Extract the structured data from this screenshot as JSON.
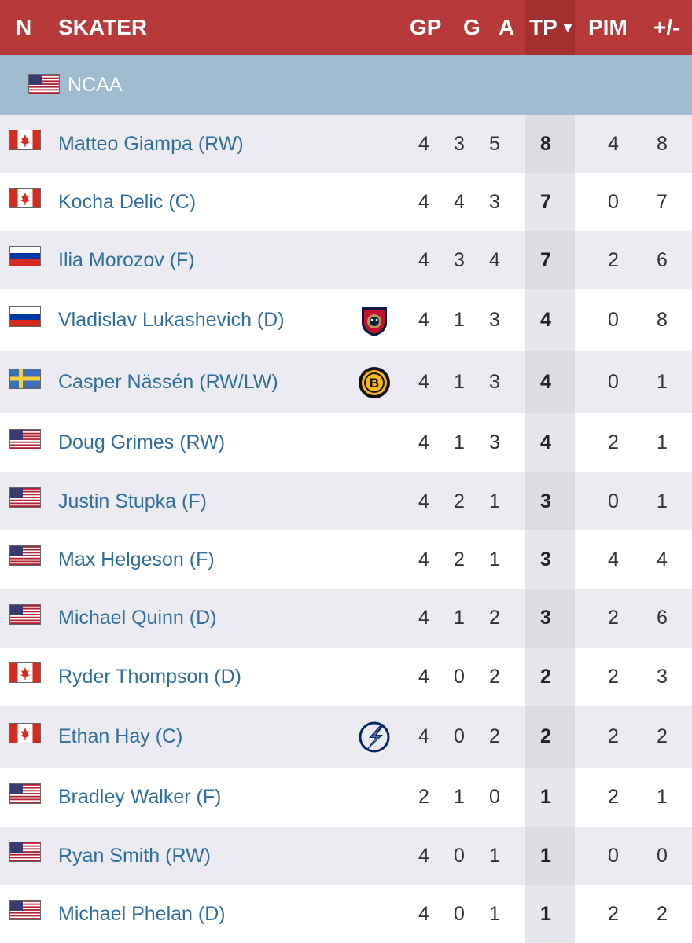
{
  "header": {
    "n": "N",
    "skater": "SKATER",
    "gp": "GP",
    "g": "G",
    "a": "A",
    "tp": "TP",
    "sort_arrow": "▾",
    "pim": "PIM",
    "plusminus": "+/-"
  },
  "league": {
    "name": "NCAA",
    "flag": "usa"
  },
  "colors": {
    "header_bg": "#b8393a",
    "league_bg": "#9fbcd0",
    "player_link": "#2f6e9e"
  },
  "rows": [
    {
      "flag": "canada",
      "name": "Matteo Giampa (RW)",
      "team_logo": "",
      "gp": "4",
      "g": "3",
      "a": "5",
      "tp": "8",
      "pim": "4",
      "pm": "8"
    },
    {
      "flag": "canada",
      "name": "Kocha Delic (C)",
      "team_logo": "",
      "gp": "4",
      "g": "4",
      "a": "3",
      "tp": "7",
      "pim": "0",
      "pm": "7"
    },
    {
      "flag": "russia",
      "name": "Ilia Morozov (F)",
      "team_logo": "",
      "gp": "4",
      "g": "3",
      "a": "4",
      "tp": "7",
      "pim": "2",
      "pm": "6"
    },
    {
      "flag": "russia",
      "name": "Vladislav Lukashevich (D)",
      "team_logo": "florida-panthers-logo",
      "gp": "4",
      "g": "1",
      "a": "3",
      "tp": "4",
      "pim": "0",
      "pm": "8"
    },
    {
      "flag": "sweden",
      "name": "Casper Nässén (RW/LW)",
      "team_logo": "boston-bruins-logo",
      "gp": "4",
      "g": "1",
      "a": "3",
      "tp": "4",
      "pim": "0",
      "pm": "1"
    },
    {
      "flag": "usa",
      "name": "Doug Grimes (RW)",
      "team_logo": "",
      "gp": "4",
      "g": "1",
      "a": "3",
      "tp": "4",
      "pim": "2",
      "pm": "1"
    },
    {
      "flag": "usa",
      "name": "Justin Stupka (F)",
      "team_logo": "",
      "gp": "4",
      "g": "2",
      "a": "1",
      "tp": "3",
      "pim": "0",
      "pm": "1"
    },
    {
      "flag": "usa",
      "name": "Max Helgeson (F)",
      "team_logo": "",
      "gp": "4",
      "g": "2",
      "a": "1",
      "tp": "3",
      "pim": "4",
      "pm": "4"
    },
    {
      "flag": "usa",
      "name": "Michael Quinn (D)",
      "team_logo": "",
      "gp": "4",
      "g": "1",
      "a": "2",
      "tp": "3",
      "pim": "2",
      "pm": "6"
    },
    {
      "flag": "canada",
      "name": "Ryder Thompson (D)",
      "team_logo": "",
      "gp": "4",
      "g": "0",
      "a": "2",
      "tp": "2",
      "pim": "2",
      "pm": "3"
    },
    {
      "flag": "canada",
      "name": "Ethan Hay (C)",
      "team_logo": "tampa-bay-lightning-logo",
      "gp": "4",
      "g": "0",
      "a": "2",
      "tp": "2",
      "pim": "2",
      "pm": "2"
    },
    {
      "flag": "usa",
      "name": "Bradley Walker (F)",
      "team_logo": "",
      "gp": "2",
      "g": "1",
      "a": "0",
      "tp": "1",
      "pim": "2",
      "pm": "1"
    },
    {
      "flag": "usa",
      "name": "Ryan Smith (RW)",
      "team_logo": "",
      "gp": "4",
      "g": "0",
      "a": "1",
      "tp": "1",
      "pim": "0",
      "pm": "0"
    },
    {
      "flag": "usa",
      "name": "Michael Phelan (D)",
      "team_logo": "",
      "gp": "4",
      "g": "0",
      "a": "1",
      "tp": "1",
      "pim": "2",
      "pm": "2"
    }
  ]
}
